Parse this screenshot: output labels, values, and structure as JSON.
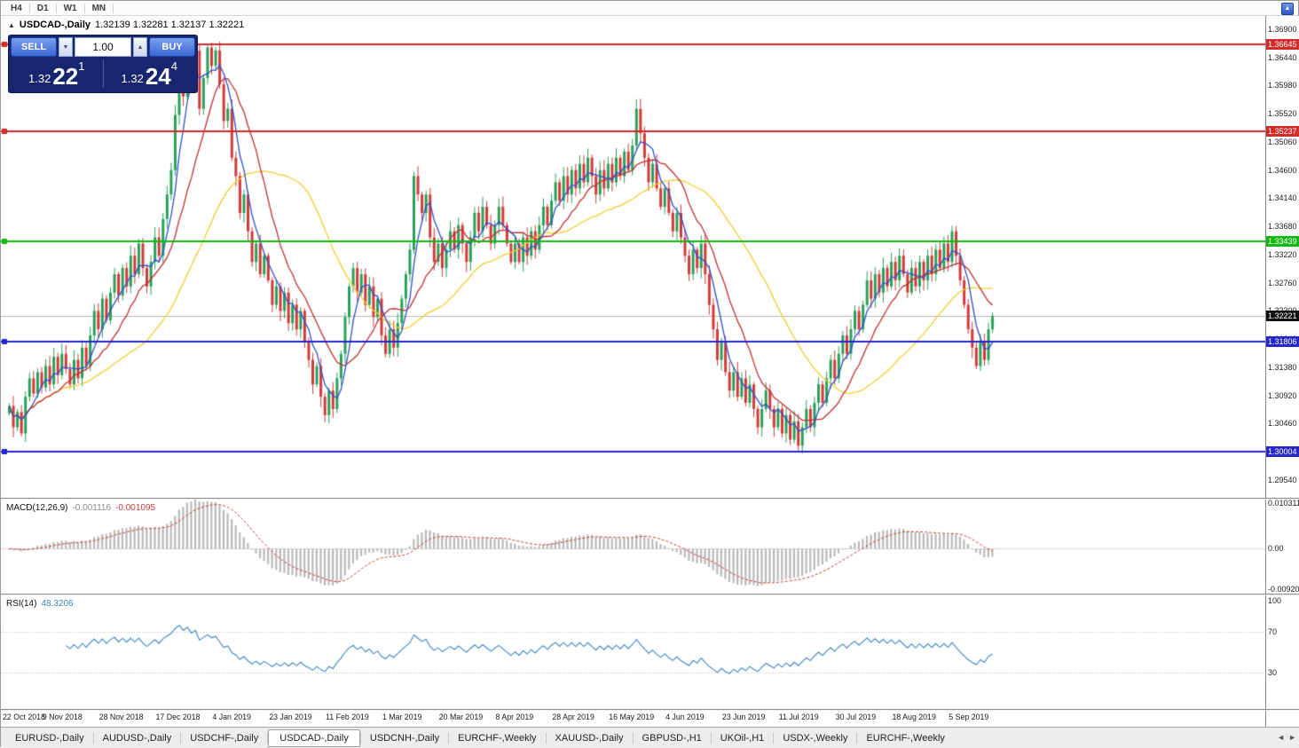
{
  "toolbar": {
    "timeframes": [
      "H4",
      "D1",
      "W1",
      "MN"
    ]
  },
  "icons": {
    "chart_marker": "▲",
    "spinner_up": "▲",
    "spinner_down": "▼",
    "toolbar_overflow": "▲",
    "tab_scroll_left": "◄",
    "tab_scroll_right": "►"
  },
  "chart": {
    "symbol": "USDCAD-,Daily",
    "ohlc": "1.32139 1.32281 1.32137 1.32221"
  },
  "one_click": {
    "sell_label": "SELL",
    "buy_label": "BUY",
    "volume": "1.00",
    "sell_price": {
      "head": "1.32",
      "big": "22",
      "sup": "1"
    },
    "buy_price": {
      "head": "1.32",
      "big": "24",
      "sup": "4"
    }
  },
  "price_axis": {
    "ticks": [
      "1.36900",
      "1.36440",
      "1.35980",
      "1.35520",
      "1.35060",
      "1.34600",
      "1.34140",
      "1.33680",
      "1.33220",
      "1.32760",
      "1.32300",
      "1.31840",
      "1.31380",
      "1.30920",
      "1.30460",
      "1.30000",
      "1.29540"
    ]
  },
  "levels": [
    {
      "price": 1.36645,
      "label": "1.36645",
      "color": "#d42a2a"
    },
    {
      "price": 1.35237,
      "label": "1.35237",
      "color": "#d42a2a"
    },
    {
      "price": 1.33439,
      "label": "1.33439",
      "color": "#12b812"
    },
    {
      "price": 1.31806,
      "label": "1.31806",
      "color": "#2626cc"
    },
    {
      "price": 1.30004,
      "label": "1.30004",
      "color": "#2626cc"
    }
  ],
  "current_price": {
    "price": 1.32221,
    "label": "1.32221",
    "color": "#111111"
  },
  "chart_data": {
    "type": "candlestick",
    "title": "USDCAD-,Daily",
    "bars_per_label": 14,
    "price_range": [
      1.2925,
      1.371
    ],
    "x_labels": [
      "22 Oct 2018",
      "9 Nov 2018",
      "28 Nov 2018",
      "17 Dec 2018",
      "4 Jan 2019",
      "23 Jan 2019",
      "11 Feb 2019",
      "1 Mar 2019",
      "20 Mar 2019",
      "8 Apr 2019",
      "28 Apr 2019",
      "16 May 2019",
      "4 Jun 2019",
      "23 Jun 2019",
      "11 Jul 2019",
      "30 Jul 2019",
      "18 Aug 2019",
      "5 Sep 2019"
    ],
    "closes": [
      1.3075,
      1.304,
      1.3065,
      1.303,
      1.309,
      1.312,
      1.3095,
      1.313,
      1.3105,
      1.314,
      1.311,
      1.3155,
      1.3125,
      1.316,
      1.3135,
      1.311,
      1.315,
      1.312,
      1.317,
      1.314,
      1.319,
      1.323,
      1.32,
      1.325,
      1.3215,
      1.326,
      1.329,
      1.3255,
      1.33,
      1.327,
      1.332,
      1.329,
      1.334,
      1.33,
      1.327,
      1.331,
      1.335,
      1.332,
      1.338,
      1.342,
      1.346,
      1.355,
      1.362,
      1.358,
      1.365,
      1.36,
      1.3655,
      1.356,
      1.361,
      1.366,
      1.363,
      1.3655,
      1.36,
      1.354,
      1.356,
      1.348,
      1.345,
      1.339,
      1.342,
      1.336,
      1.331,
      1.334,
      1.329,
      1.332,
      1.328,
      1.324,
      1.327,
      1.323,
      1.326,
      1.321,
      1.324,
      1.32,
      1.323,
      1.318,
      1.315,
      1.311,
      1.314,
      1.309,
      1.306,
      1.31,
      1.307,
      1.312,
      1.316,
      1.322,
      1.327,
      1.33,
      1.326,
      1.329,
      1.324,
      1.327,
      1.322,
      1.325,
      1.319,
      1.316,
      1.32,
      1.317,
      1.321,
      1.325,
      1.329,
      1.333,
      1.345,
      1.342,
      1.339,
      1.342,
      1.335,
      1.331,
      1.334,
      1.33,
      1.333,
      1.336,
      1.333,
      1.337,
      1.334,
      1.331,
      1.335,
      1.339,
      1.336,
      1.34,
      1.337,
      1.334,
      1.337,
      1.34,
      1.337,
      1.334,
      1.331,
      1.334,
      1.331,
      1.335,
      1.332,
      1.336,
      1.333,
      1.337,
      1.34,
      1.337,
      1.341,
      1.344,
      1.341,
      1.345,
      1.342,
      1.346,
      1.343,
      1.347,
      1.344,
      1.348,
      1.345,
      1.342,
      1.346,
      1.343,
      1.347,
      1.344,
      1.348,
      1.345,
      1.349,
      1.346,
      1.35,
      1.356,
      1.352,
      1.348,
      1.344,
      1.347,
      1.343,
      1.34,
      1.343,
      1.339,
      1.336,
      1.339,
      1.335,
      1.332,
      1.329,
      1.333,
      1.33,
      1.334,
      1.329,
      1.324,
      1.32,
      1.315,
      1.318,
      1.313,
      1.31,
      1.313,
      1.309,
      1.312,
      1.308,
      1.311,
      1.307,
      1.304,
      1.307,
      1.31,
      1.307,
      1.304,
      1.307,
      1.303,
      1.306,
      1.302,
      1.305,
      1.301,
      1.304,
      1.307,
      1.304,
      1.308,
      1.311,
      1.308,
      1.312,
      1.315,
      1.312,
      1.316,
      1.319,
      1.316,
      1.32,
      1.323,
      1.32,
      1.324,
      1.328,
      1.325,
      1.329,
      1.326,
      1.33,
      1.327,
      1.331,
      1.328,
      1.332,
      1.329,
      1.326,
      1.33,
      1.327,
      1.331,
      1.328,
      1.332,
      1.329,
      1.333,
      1.33,
      1.334,
      1.331,
      1.336,
      1.332,
      1.328,
      1.324,
      1.32,
      1.317,
      1.314,
      1.318,
      1.315,
      1.32,
      1.3222
    ],
    "moving_averages": [
      {
        "period": 5,
        "color": "#2f4fc9"
      },
      {
        "period": 13,
        "color": "#c03030"
      },
      {
        "period": 34,
        "color": "#f2cd2e"
      }
    ]
  },
  "macd": {
    "label": "MACD(12,26,9)",
    "value1": "-0.001116",
    "value2": "-0.001095",
    "fast": 12,
    "slow": 26,
    "signal": 9,
    "axis_labels": [
      "0.010311",
      "0.00",
      "-0.009203"
    ],
    "axis_values": [
      0.010311,
      0,
      -0.009203
    ],
    "hist_color": "#b9b9b9",
    "signal_color": "#c43c3c"
  },
  "rsi": {
    "label": "RSI(14)",
    "value": "48.3206",
    "period": 14,
    "axis_labels": [
      "100",
      "70",
      "30"
    ],
    "axis_values": [
      100,
      70,
      30
    ],
    "level_lines": [
      70,
      30
    ],
    "line_color": "#3d85c6"
  },
  "tabs": {
    "active_index": 3,
    "items": [
      "EURUSD-,Daily",
      "AUDUSD-,Daily",
      "USDCHF-,Daily",
      "USDCAD-,Daily",
      "USDCNH-,Daily",
      "EURCHF-,Weekly",
      "XAUUSD-,Daily",
      "GBPUSD-,H1",
      "UKOil-,H1",
      "USDX-,Weekly",
      "EURCHF-,Weekly"
    ]
  },
  "colors": {
    "up": "#2aa05a",
    "down": "#d33a3a"
  }
}
